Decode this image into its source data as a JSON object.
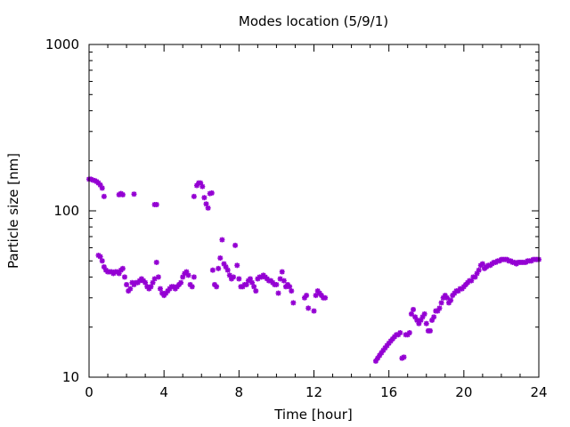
{
  "chart_data": {
    "type": "scatter",
    "title": "Modes location (5/9/1)",
    "xlabel": "Time [hour]",
    "ylabel": "Particle size [nm]",
    "xlim": [
      0,
      24
    ],
    "ylim": [
      10,
      1000
    ],
    "yscale": "log",
    "xticks": [
      "0",
      "4",
      "8",
      "12",
      "16",
      "20",
      "24"
    ],
    "yticks": [
      "10",
      "100",
      "1000"
    ],
    "grid": false,
    "legend": "none",
    "marker_color": "#9400d3",
    "series": [
      {
        "values": [
          [
            0.0,
            155
          ],
          [
            0.1,
            155
          ],
          [
            0.2,
            153
          ],
          [
            0.3,
            152
          ],
          [
            0.4,
            150
          ],
          [
            0.5,
            147
          ],
          [
            0.6,
            143
          ],
          [
            0.7,
            137
          ],
          [
            0.8,
            122
          ],
          [
            1.6,
            125
          ],
          [
            1.7,
            127
          ],
          [
            1.8,
            125
          ],
          [
            2.4,
            126
          ],
          [
            3.5,
            109
          ],
          [
            3.6,
            109
          ],
          [
            5.6,
            122
          ],
          [
            5.75,
            142
          ],
          [
            5.85,
            147
          ],
          [
            5.95,
            147
          ],
          [
            6.05,
            140
          ],
          [
            6.15,
            120
          ],
          [
            6.25,
            110
          ],
          [
            6.35,
            104
          ],
          [
            6.45,
            127
          ],
          [
            6.55,
            128
          ],
          [
            0.5,
            54
          ],
          [
            0.6,
            53
          ],
          [
            0.7,
            50
          ],
          [
            0.8,
            46
          ],
          [
            0.9,
            44
          ],
          [
            1.0,
            43
          ],
          [
            1.1,
            43
          ],
          [
            1.2,
            43
          ],
          [
            1.3,
            42
          ],
          [
            1.4,
            43
          ],
          [
            1.5,
            43
          ],
          [
            1.6,
            42
          ],
          [
            1.7,
            44
          ],
          [
            1.8,
            45
          ],
          [
            1.9,
            40
          ],
          [
            2.0,
            36
          ],
          [
            2.1,
            33
          ],
          [
            2.2,
            34
          ],
          [
            2.3,
            37
          ],
          [
            2.4,
            36
          ],
          [
            2.5,
            37
          ],
          [
            2.6,
            37
          ],
          [
            2.7,
            38
          ],
          [
            2.8,
            39
          ],
          [
            2.9,
            38
          ],
          [
            3.0,
            37
          ],
          [
            3.1,
            35
          ],
          [
            3.2,
            34
          ],
          [
            3.3,
            35
          ],
          [
            3.4,
            37
          ],
          [
            3.5,
            39
          ],
          [
            3.6,
            49
          ],
          [
            3.7,
            40
          ],
          [
            3.8,
            34
          ],
          [
            3.9,
            32
          ],
          [
            4.0,
            31
          ],
          [
            4.1,
            32
          ],
          [
            4.2,
            33
          ],
          [
            4.3,
            34
          ],
          [
            4.4,
            35
          ],
          [
            4.5,
            35
          ],
          [
            4.6,
            34
          ],
          [
            4.7,
            35
          ],
          [
            4.8,
            36
          ],
          [
            4.9,
            37
          ],
          [
            5.0,
            40
          ],
          [
            5.1,
            42
          ],
          [
            5.2,
            43
          ],
          [
            5.3,
            41
          ],
          [
            5.4,
            36
          ],
          [
            5.5,
            35
          ],
          [
            5.6,
            40
          ],
          [
            6.6,
            44
          ],
          [
            6.7,
            36
          ],
          [
            6.8,
            35
          ],
          [
            6.9,
            45
          ],
          [
            7.0,
            52
          ],
          [
            7.1,
            67
          ],
          [
            7.2,
            48
          ],
          [
            7.3,
            46
          ],
          [
            7.4,
            44
          ],
          [
            7.5,
            41
          ],
          [
            7.6,
            39
          ],
          [
            7.7,
            40
          ],
          [
            7.8,
            62
          ],
          [
            7.9,
            47
          ],
          [
            8.0,
            39
          ],
          [
            8.1,
            35
          ],
          [
            8.2,
            35
          ],
          [
            8.3,
            36
          ],
          [
            8.4,
            36
          ],
          [
            8.5,
            38
          ],
          [
            8.6,
            39
          ],
          [
            8.7,
            37
          ],
          [
            8.8,
            35
          ],
          [
            8.9,
            33
          ],
          [
            9.0,
            39
          ],
          [
            9.1,
            40
          ],
          [
            9.2,
            40
          ],
          [
            9.3,
            41
          ],
          [
            9.4,
            40
          ],
          [
            9.5,
            39
          ],
          [
            9.6,
            38
          ],
          [
            9.7,
            38
          ],
          [
            9.8,
            37
          ],
          [
            9.9,
            36
          ],
          [
            10.0,
            36
          ],
          [
            10.1,
            32
          ],
          [
            10.2,
            39
          ],
          [
            10.3,
            43
          ],
          [
            10.4,
            38
          ],
          [
            10.5,
            35
          ],
          [
            10.6,
            36
          ],
          [
            10.7,
            35
          ],
          [
            10.8,
            33
          ],
          [
            10.9,
            28
          ],
          [
            11.5,
            30
          ],
          [
            11.6,
            31
          ],
          [
            11.7,
            26
          ],
          [
            12.0,
            25
          ],
          [
            12.1,
            31
          ],
          [
            12.2,
            33
          ],
          [
            12.3,
            32
          ],
          [
            12.4,
            31
          ],
          [
            12.5,
            30
          ],
          [
            12.6,
            30
          ],
          [
            15.3,
            12.5
          ],
          [
            15.4,
            13
          ],
          [
            15.5,
            13.5
          ],
          [
            15.6,
            14
          ],
          [
            15.7,
            14.5
          ],
          [
            15.8,
            15
          ],
          [
            15.9,
            15.5
          ],
          [
            16.0,
            16
          ],
          [
            16.1,
            16.5
          ],
          [
            16.2,
            17
          ],
          [
            16.3,
            17.5
          ],
          [
            16.4,
            18
          ],
          [
            16.5,
            18
          ],
          [
            16.6,
            18.5
          ],
          [
            16.7,
            13
          ],
          [
            16.8,
            13.2
          ],
          [
            16.9,
            18
          ],
          [
            17.0,
            18
          ],
          [
            17.1,
            18.5
          ],
          [
            17.2,
            24
          ],
          [
            17.3,
            25.5
          ],
          [
            17.4,
            23
          ],
          [
            17.5,
            22
          ],
          [
            17.6,
            21
          ],
          [
            17.7,
            22
          ],
          [
            17.8,
            23
          ],
          [
            17.9,
            24
          ],
          [
            18.0,
            21
          ],
          [
            18.1,
            19
          ],
          [
            18.2,
            19
          ],
          [
            18.3,
            22
          ],
          [
            18.4,
            23
          ],
          [
            18.5,
            25
          ],
          [
            18.6,
            25
          ],
          [
            18.7,
            26
          ],
          [
            18.8,
            28
          ],
          [
            18.9,
            30
          ],
          [
            19.0,
            31
          ],
          [
            19.1,
            30
          ],
          [
            19.2,
            28
          ],
          [
            19.3,
            29
          ],
          [
            19.4,
            31
          ],
          [
            19.5,
            32
          ],
          [
            19.6,
            33
          ],
          [
            19.7,
            33
          ],
          [
            19.8,
            34
          ],
          [
            19.9,
            34
          ],
          [
            20.0,
            35
          ],
          [
            20.1,
            36
          ],
          [
            20.2,
            37
          ],
          [
            20.3,
            38
          ],
          [
            20.4,
            38
          ],
          [
            20.5,
            40
          ],
          [
            20.6,
            40
          ],
          [
            20.7,
            42
          ],
          [
            20.8,
            44
          ],
          [
            20.9,
            47
          ],
          [
            21.0,
            48
          ],
          [
            21.1,
            45
          ],
          [
            21.2,
            46
          ],
          [
            21.3,
            47
          ],
          [
            21.4,
            47
          ],
          [
            21.5,
            48
          ],
          [
            21.6,
            49
          ],
          [
            21.7,
            49
          ],
          [
            21.8,
            50
          ],
          [
            21.9,
            50
          ],
          [
            22.0,
            51
          ],
          [
            22.1,
            51
          ],
          [
            22.2,
            51
          ],
          [
            22.3,
            51
          ],
          [
            22.4,
            50
          ],
          [
            22.5,
            50
          ],
          [
            22.6,
            49
          ],
          [
            22.7,
            49
          ],
          [
            22.8,
            48
          ],
          [
            22.9,
            49
          ],
          [
            23.0,
            49
          ],
          [
            23.1,
            49
          ],
          [
            23.2,
            49
          ],
          [
            23.3,
            49
          ],
          [
            23.4,
            50
          ],
          [
            23.5,
            50
          ],
          [
            23.6,
            50
          ],
          [
            23.7,
            51
          ],
          [
            23.8,
            51
          ],
          [
            23.9,
            51
          ],
          [
            24.0,
            51
          ]
        ]
      }
    ]
  }
}
